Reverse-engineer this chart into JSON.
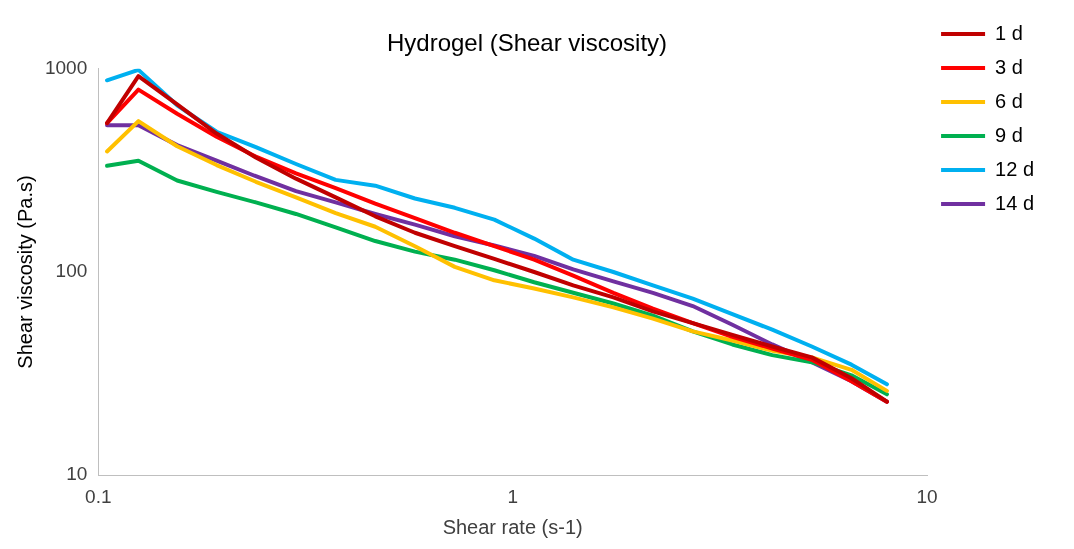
{
  "chart_data": {
    "type": "line",
    "title": "Hydrogel (Shear viscosity)",
    "xlabel": "Shear rate (s-1)",
    "ylabel": "Shear viscosity (Pa.s)",
    "x": [
      0.105,
      0.125,
      0.155,
      0.193,
      0.24,
      0.3,
      0.374,
      0.466,
      0.581,
      0.725,
      0.903,
      1.127,
      1.4,
      1.75,
      2.18,
      2.72,
      3.39,
      4.23,
      5.27,
      6.57,
      8.0
    ],
    "series": [
      {
        "name": "1 d",
        "color": "#c00000",
        "values": [
          540,
          920,
          669,
          480,
          366,
          288,
          233,
          188,
          156,
          134,
          116,
          100,
          86,
          75,
          64,
          56,
          49,
          43,
          38,
          30,
          23
        ]
      },
      {
        "name": "3 d",
        "color": "#ff0000",
        "values": [
          540,
          790,
          601,
          463,
          370,
          306,
          259,
          217,
          184,
          156,
          134,
          115,
          96,
          79,
          66,
          56,
          48,
          42,
          37,
          29,
          23
        ]
      },
      {
        "name": "6 d",
        "color": "#ffc000",
        "values": [
          392,
          553,
          416,
          336,
          278,
          233,
          195,
          167,
          134,
          106,
          91,
          83,
          75,
          67,
          59,
          51,
          46,
          41,
          38,
          33,
          26
        ]
      },
      {
        "name": "9 d",
        "color": "#00b050",
        "values": [
          333,
          353,
          282,
          248,
          220,
          193,
          166,
          142,
          126,
          115,
          102,
          89,
          79,
          70,
          61,
          51,
          44,
          39,
          36,
          31,
          25
        ]
      },
      {
        "name": "12 d",
        "color": "#00b0f0",
        "values": [
          878,
          988,
          661,
          490,
          412,
          340,
          284,
          266,
          230,
          207,
          181,
          146,
          115,
          100,
          86,
          74,
          62,
          52,
          43,
          35,
          28
        ]
      },
      {
        "name": "14 d",
        "color": "#7030a0",
        "values": [
          528,
          528,
          421,
          353,
          296,
          250,
          220,
          193,
          171,
          150,
          135,
          120,
          103,
          90,
          79,
          68,
          55,
          44,
          36,
          29,
          23
        ]
      }
    ],
    "log": "xy",
    "xlim": [
      0.1,
      10
    ],
    "xticks": [
      0.1,
      1,
      10
    ],
    "ylim": [
      10,
      1000
    ],
    "yticks": [
      10,
      100,
      1000
    ],
    "grid": false,
    "legend": "right",
    "marker": "none",
    "line_style": "solid"
  }
}
